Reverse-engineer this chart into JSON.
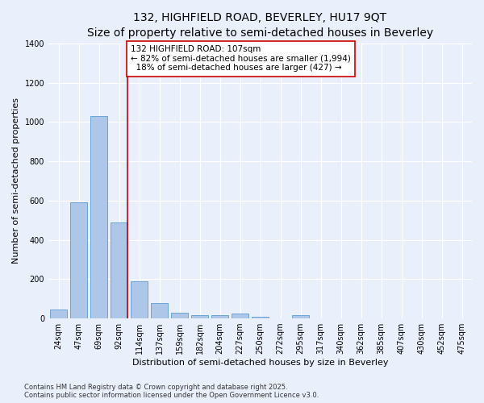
{
  "title_line1": "132, HIGHFIELD ROAD, BEVERLEY, HU17 9QT",
  "title_line2": "Size of property relative to semi-detached houses in Beverley",
  "xlabel": "Distribution of semi-detached houses by size in Beverley",
  "ylabel": "Number of semi-detached properties",
  "categories": [
    "24sqm",
    "47sqm",
    "69sqm",
    "92sqm",
    "114sqm",
    "137sqm",
    "159sqm",
    "182sqm",
    "204sqm",
    "227sqm",
    "250sqm",
    "272sqm",
    "295sqm",
    "317sqm",
    "340sqm",
    "362sqm",
    "385sqm",
    "407sqm",
    "430sqm",
    "452sqm",
    "475sqm"
  ],
  "values": [
    45,
    590,
    1030,
    490,
    190,
    80,
    30,
    15,
    15,
    25,
    8,
    0,
    18,
    0,
    0,
    0,
    0,
    0,
    0,
    0,
    0
  ],
  "bar_color": "#aec6e8",
  "bar_edge_color": "#5b9bd5",
  "vline_color": "#cc0000",
  "annotation_text": "132 HIGHFIELD ROAD: 107sqm\n← 82% of semi-detached houses are smaller (1,994)\n  18% of semi-detached houses are larger (427) →",
  "annotation_box_color": "#cc0000",
  "background_color": "#eaf0fb",
  "grid_color": "#ffffff",
  "ylim": [
    0,
    1400
  ],
  "yticks": [
    0,
    200,
    400,
    600,
    800,
    1000,
    1200,
    1400
  ],
  "footer_line1": "Contains HM Land Registry data © Crown copyright and database right 2025.",
  "footer_line2": "Contains public sector information licensed under the Open Government Licence v3.0.",
  "title_fontsize": 10,
  "subtitle_fontsize": 9,
  "axis_label_fontsize": 8,
  "tick_fontsize": 7,
  "annotation_fontsize": 7.5,
  "footer_fontsize": 6
}
